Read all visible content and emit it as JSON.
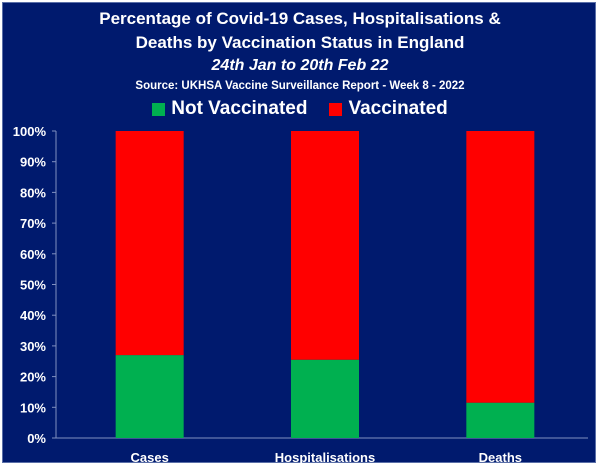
{
  "chart_data": {
    "type": "bar",
    "stacked": true,
    "title": "Percentage of Covid-19 Cases, Hospitalisations &",
    "title_line2": "Deaths by Vaccination Status in England",
    "subtitle": "24th Jan to 20th Feb 22",
    "source": "Source: UKHSA Vaccine Surveillance Report - Week 8 - 2022",
    "categories": [
      "Cases",
      "Hospitalisations",
      "Deaths"
    ],
    "series": [
      {
        "name": "Not Vaccinated",
        "color": "#00b050",
        "values": [
          27,
          25.5,
          11.5
        ]
      },
      {
        "name": "Vaccinated",
        "color": "#ff0000",
        "values": [
          73,
          74.5,
          88.5
        ]
      }
    ],
    "ylim": [
      0,
      100
    ],
    "yticks": [
      "0%",
      "10%",
      "20%",
      "30%",
      "40%",
      "50%",
      "60%",
      "70%",
      "80%",
      "90%",
      "100%"
    ],
    "grid": false,
    "legend_position": "top-center",
    "background_color": "#001a6e"
  }
}
